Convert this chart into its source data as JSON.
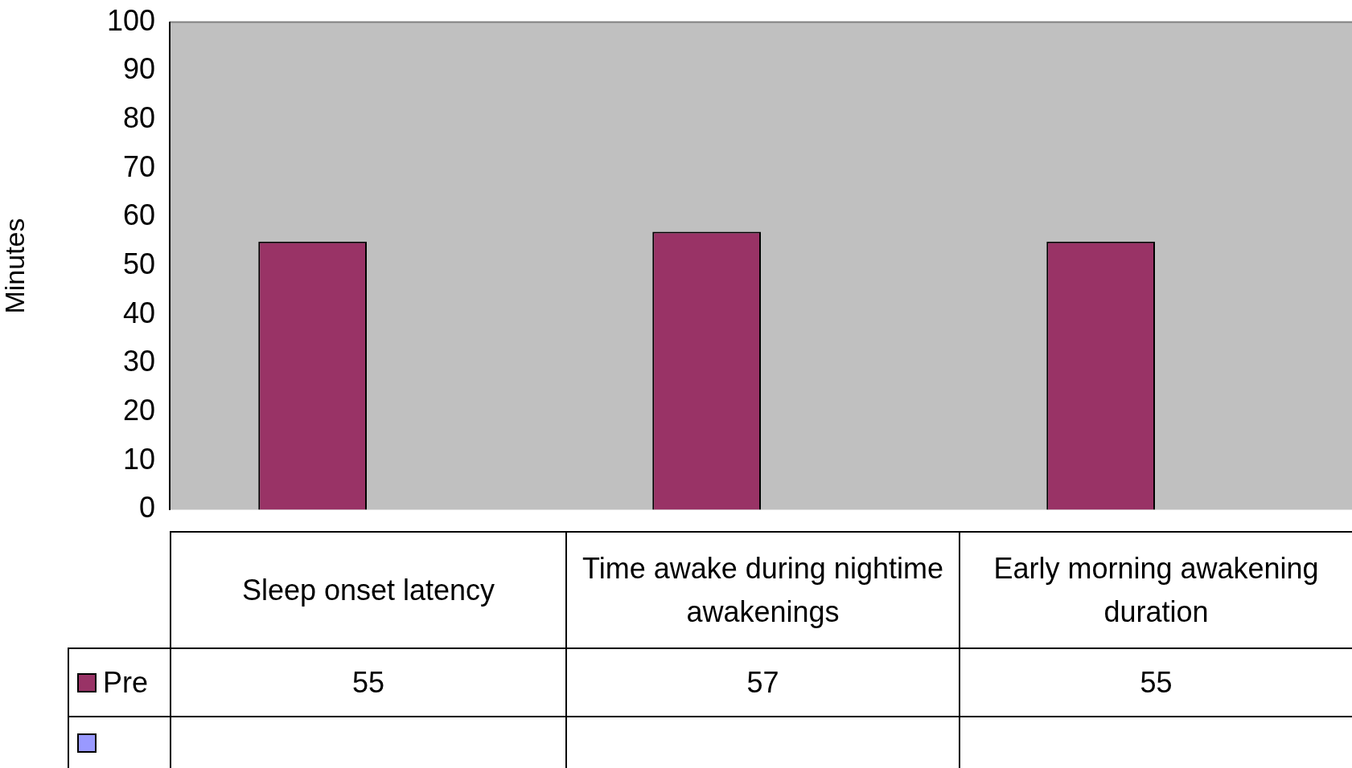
{
  "chart_data": {
    "type": "bar",
    "ylabel": "Minutes",
    "categories": [
      "Sleep onset latency",
      "Time awake during nightime awakenings",
      "Early morning awakening duration"
    ],
    "series": [
      {
        "name": "Pre",
        "color": "#993366",
        "values": [
          55,
          57,
          55
        ]
      },
      {
        "color": "#9999ff",
        "values": [
          null,
          null,
          null
        ]
      }
    ],
    "ylim": [
      0,
      100
    ],
    "yticks": [
      0,
      10,
      20,
      30,
      40,
      50,
      60,
      70,
      80,
      90,
      100
    ],
    "grid": false,
    "data_labels": true
  }
}
